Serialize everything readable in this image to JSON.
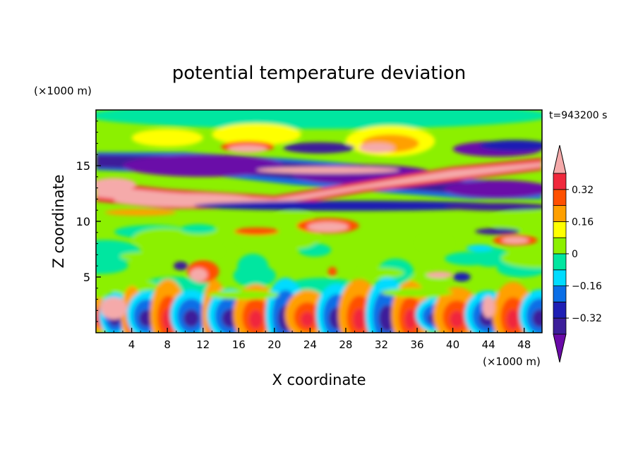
{
  "chart_data": {
    "type": "heatmap",
    "title": "potential temperature deviation",
    "xlabel": "X coordinate",
    "ylabel": "Z coordinate",
    "x_unit": "(×1000 m)",
    "y_unit": "(×1000 m)",
    "time_label": "t=943200 s",
    "xlim": [
      0,
      50
    ],
    "ylim": [
      0,
      20
    ],
    "x_ticks": [
      4,
      8,
      12,
      16,
      20,
      24,
      28,
      32,
      36,
      40,
      44,
      48
    ],
    "y_ticks": [
      5,
      10,
      15
    ],
    "colorbar": {
      "levels": [
        -0.4,
        -0.32,
        -0.24,
        -0.16,
        -0.08,
        0,
        0.08,
        0.16,
        0.24,
        0.32,
        0.4
      ],
      "tick_labels": [
        {
          "value": 0.32,
          "label": "0.32"
        },
        {
          "value": 0.16,
          "label": "0.16"
        },
        {
          "value": 0,
          "label": "0"
        },
        {
          "value": -0.16,
          "label": "−0.16"
        },
        {
          "value": -0.32,
          "label": "−0.32"
        }
      ],
      "colors": [
        "#6a0aa8",
        "#3c1e9a",
        "#1e1eb4",
        "#0a6ee6",
        "#00dcff",
        "#00e6a0",
        "#8cf000",
        "#ffff00",
        "#ffa000",
        "#ff5000",
        "#f0283c",
        "#f5aaaa"
      ]
    },
    "features": [
      {
        "name": "upper-positive-band",
        "x_range": [
          1,
          50
        ],
        "z_center_start": 11.8,
        "z_center_end": 15.3,
        "value": 0.45
      },
      {
        "name": "upper-negative-band",
        "x_range": [
          1,
          50
        ],
        "z_center_start": 15.0,
        "z_center_end": 12.5,
        "value": -0.45
      },
      {
        "name": "boundary-layer-convection",
        "z_range": [
          0,
          3.4
        ],
        "value_range": [
          -0.45,
          0.45
        ]
      },
      {
        "name": "mid-level-neutral",
        "z_range": [
          3.4,
          10
        ],
        "value": 0.02
      }
    ]
  }
}
